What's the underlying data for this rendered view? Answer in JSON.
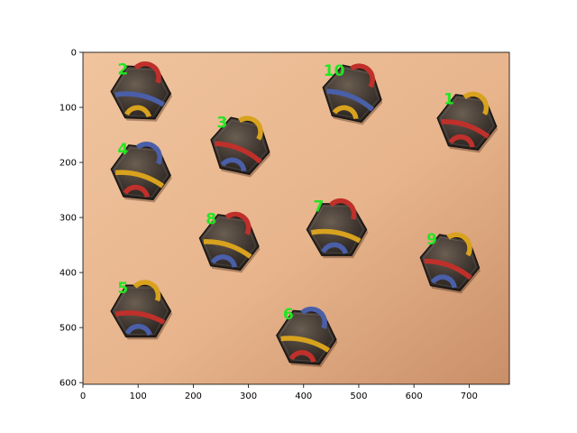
{
  "figure": {
    "x_axis": {
      "ticks": [
        "0",
        "100",
        "200",
        "300",
        "400",
        "500",
        "600",
        "700"
      ]
    },
    "y_axis": {
      "ticks": [
        "0",
        "100",
        "200",
        "300",
        "400",
        "500",
        "600"
      ]
    },
    "xlim": [
      0,
      773
    ],
    "ylim": [
      603,
      0
    ],
    "background_color": "#d9a27b"
  },
  "tiles": [
    {
      "label": "1",
      "cx": 696,
      "cy": 127,
      "rot": 8,
      "arcs": [
        "#d8a21e",
        "#c0302b",
        "#c0302b"
      ]
    },
    {
      "label": "2",
      "cx": 105,
      "cy": 73,
      "rot": 2,
      "arcs": [
        "#c0302b",
        "#4a5fa8",
        "#d8a21e"
      ]
    },
    {
      "label": "3",
      "cx": 285,
      "cy": 170,
      "rot": 12,
      "arcs": [
        "#d8a21e",
        "#c0302b",
        "#4a5fa8"
      ]
    },
    {
      "label": "4",
      "cx": 105,
      "cy": 218,
      "rot": 6,
      "arcs": [
        "#4a5fa8",
        "#d8a21e",
        "#c0302b"
      ]
    },
    {
      "label": "5",
      "cx": 105,
      "cy": 470,
      "rot": 0,
      "arcs": [
        "#d8a21e",
        "#c0302b",
        "#4a5fa8"
      ]
    },
    {
      "label": "6",
      "cx": 405,
      "cy": 518,
      "rot": 4,
      "arcs": [
        "#4a5fa8",
        "#d8a21e",
        "#c0302b"
      ]
    },
    {
      "label": "7",
      "cx": 460,
      "cy": 322,
      "rot": 0,
      "arcs": [
        "#c0302b",
        "#d8a21e",
        "#4a5fa8"
      ]
    },
    {
      "label": "8",
      "cx": 265,
      "cy": 345,
      "rot": 8,
      "arcs": [
        "#c0302b",
        "#d8a21e",
        "#4a5fa8"
      ]
    },
    {
      "label": "9",
      "cx": 665,
      "cy": 382,
      "rot": 10,
      "arcs": [
        "#d8a21e",
        "#c0302b",
        "#4a5fa8"
      ]
    },
    {
      "label": "10",
      "cx": 488,
      "cy": 75,
      "rot": 12,
      "arcs": [
        "#c0302b",
        "#4a5fa8",
        "#d8a21e"
      ]
    }
  ]
}
